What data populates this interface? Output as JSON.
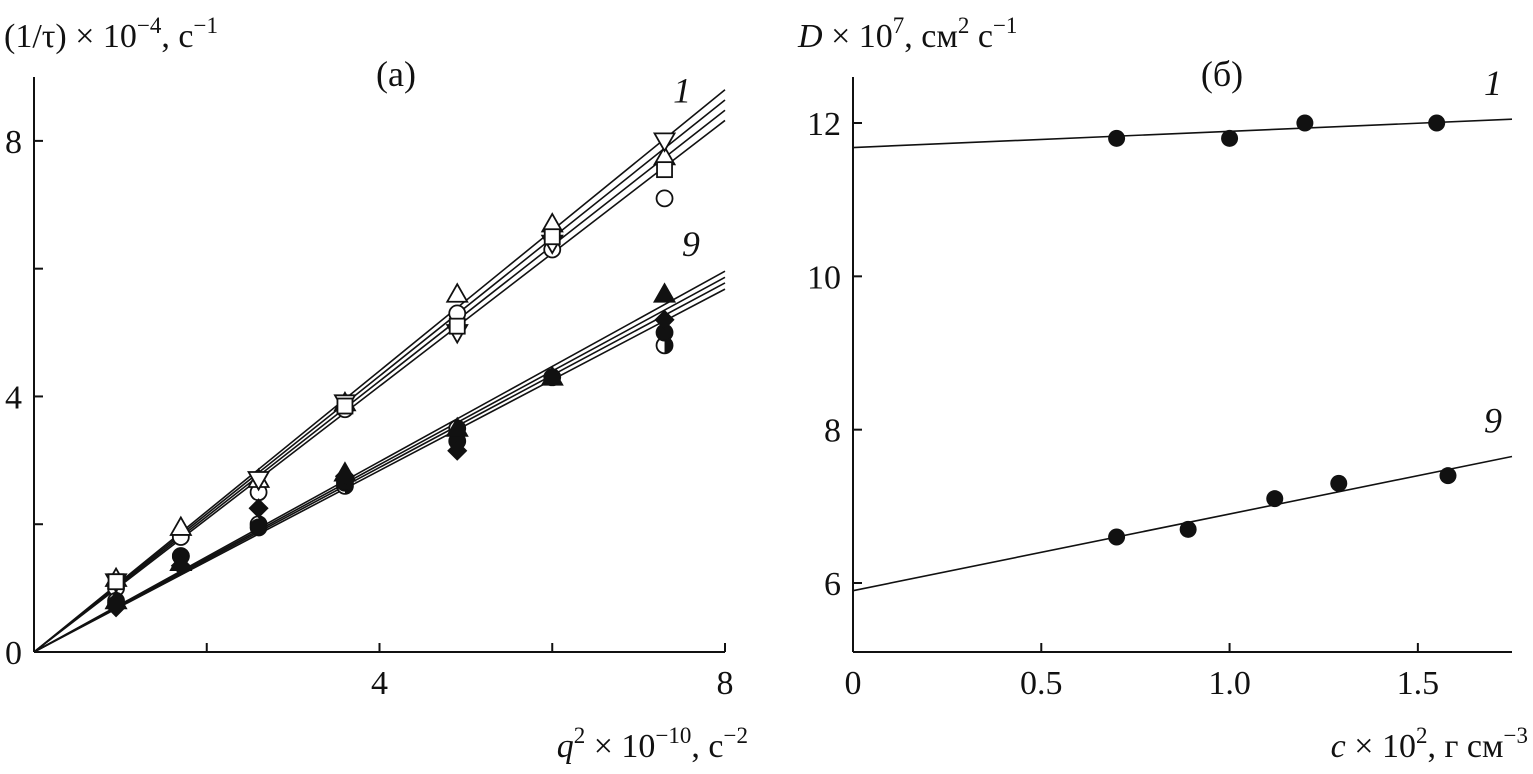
{
  "chart_data": [
    {
      "panel": "a",
      "panel_label": "(а)",
      "type": "scatter",
      "ylabel": {
        "prefix": "(1/τ) × 10",
        "exp": "−4",
        "unit": ", с",
        "unit_exp": "−1"
      },
      "xlabel": {
        "var": "q",
        "var_exp": "2",
        "mid": " × 10",
        "exp": "−10",
        "unit": ", с",
        "unit_exp": "−2"
      },
      "xlim": [
        0,
        8
      ],
      "ylim": [
        0,
        9
      ],
      "xticks": [
        2,
        4,
        6,
        8
      ],
      "xtick_labels": [
        "4",
        "8"
      ],
      "yticks": [
        0,
        2,
        4,
        6,
        8
      ],
      "ytick_labels": [
        "0",
        "4",
        "8"
      ],
      "grid": false,
      "fits": [
        {
          "slope": 1.1
        },
        {
          "slope": 1.08
        },
        {
          "slope": 1.06
        },
        {
          "slope": 1.04
        },
        {
          "slope": 0.745
        },
        {
          "slope": 0.733
        },
        {
          "slope": 0.722
        },
        {
          "slope": 0.71
        }
      ],
      "series": [
        {
          "marker": "circle-open",
          "x": [
            0.95,
            1.7,
            2.6,
            3.6,
            4.9,
            6.0,
            7.3
          ],
          "y": [
            1.0,
            1.8,
            2.5,
            3.8,
            5.3,
            6.3,
            7.1
          ]
        },
        {
          "marker": "triangle-open",
          "x": [
            0.95,
            1.7,
            2.6,
            3.6,
            4.9,
            6.0,
            7.3
          ],
          "y": [
            1.15,
            1.95,
            2.7,
            3.9,
            5.6,
            6.7,
            7.75
          ]
        },
        {
          "marker": "triangle-down-open",
          "x": [
            0.95,
            2.6,
            3.6,
            4.9,
            6.0,
            7.3
          ],
          "y": [
            1.1,
            2.7,
            3.9,
            5.0,
            6.4,
            8.0
          ]
        },
        {
          "marker": "square-open",
          "x": [
            0.95,
            3.6,
            4.9,
            6.0,
            7.3
          ],
          "y": [
            1.1,
            3.85,
            5.1,
            6.5,
            7.55
          ]
        },
        {
          "marker": "circle-half",
          "x": [
            0.95,
            1.7,
            2.6,
            3.6,
            4.9,
            7.3
          ],
          "y": [
            0.8,
            1.5,
            2.0,
            2.6,
            3.5,
            4.8
          ]
        },
        {
          "marker": "circle-filled",
          "x": [
            0.95,
            1.7,
            2.6,
            3.6,
            4.9,
            6.0,
            7.3
          ],
          "y": [
            0.75,
            1.5,
            1.95,
            2.65,
            3.3,
            4.3,
            5.0
          ]
        },
        {
          "marker": "triangle-filled",
          "x": [
            0.95,
            1.7,
            3.6,
            4.9,
            6.0,
            7.3
          ],
          "y": [
            0.8,
            1.4,
            2.8,
            3.5,
            4.3,
            5.6
          ]
        },
        {
          "marker": "diamond-filled",
          "x": [
            0.95,
            1.7,
            2.6,
            3.6,
            4.9,
            7.3
          ],
          "y": [
            0.7,
            1.35,
            2.25,
            2.75,
            3.15,
            5.2
          ]
        }
      ],
      "line_labels": [
        {
          "text": "1",
          "x": 7.4,
          "y": 8.6
        },
        {
          "text": "9",
          "x": 7.5,
          "y": 6.2
        }
      ]
    },
    {
      "panel": "b",
      "panel_label": "(б)",
      "type": "scatter",
      "ylabel": {
        "var": "D",
        "mid": " × 10",
        "exp": "7",
        "unit": ", см",
        "unit_exp": "2",
        "unit2": " с",
        "unit2_exp": "−1"
      },
      "xlabel": {
        "var": "c",
        "mid": " × 10",
        "exp": "2",
        "unit": ", г см",
        "unit_exp": "−3"
      },
      "xlim": [
        0,
        1.75
      ],
      "ylim": [
        5.1,
        12.6
      ],
      "xticks": [
        0,
        0.5,
        1.0,
        1.5
      ],
      "xtick_labels": [
        "0",
        "0.5",
        "1.0",
        "1.5"
      ],
      "yticks": [
        6,
        8,
        10,
        12
      ],
      "ytick_labels": [
        "6",
        "8",
        "10",
        "12"
      ],
      "grid": false,
      "series": [
        {
          "name": "1",
          "x": [
            0.7,
            1.0,
            1.2,
            1.55
          ],
          "y": [
            11.8,
            11.8,
            12.0,
            12.0
          ],
          "fit": [
            [
              0,
              11.68
            ],
            [
              1.75,
              12.05
            ]
          ]
        },
        {
          "name": "9",
          "x": [
            0.7,
            0.89,
            1.12,
            1.29,
            1.58
          ],
          "y": [
            6.6,
            6.7,
            7.1,
            7.3,
            7.4
          ],
          "fit": [
            [
              0,
              5.9
            ],
            [
              1.75,
              7.65
            ]
          ]
        }
      ]
    }
  ]
}
